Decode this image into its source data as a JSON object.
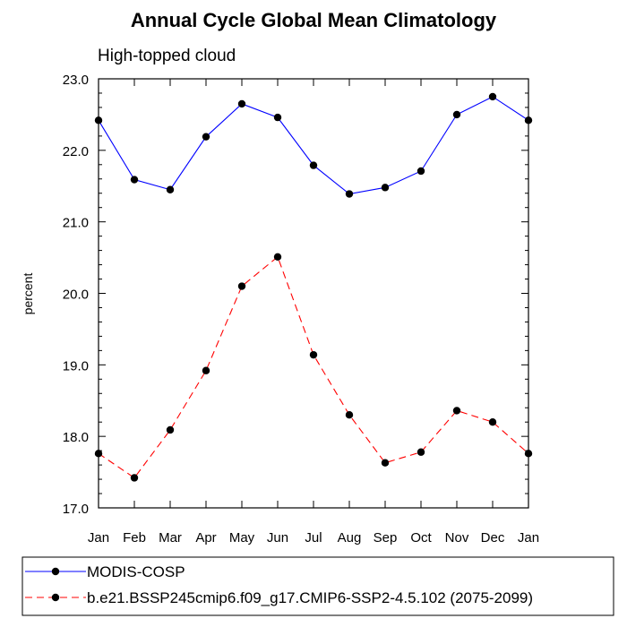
{
  "chart_data": {
    "type": "line",
    "title": "Annual Cycle Global Mean Climatology",
    "subtitle": "High-topped cloud",
    "xlabel": "",
    "ylabel": "percent",
    "categories": [
      "Jan",
      "Feb",
      "Mar",
      "Apr",
      "May",
      "Jun",
      "Jul",
      "Aug",
      "Sep",
      "Oct",
      "Nov",
      "Dec",
      "Jan"
    ],
    "ylim": [
      17.0,
      23.0
    ],
    "yticks": [
      "17.0",
      "18.0",
      "19.0",
      "20.0",
      "21.0",
      "22.0",
      "23.0"
    ],
    "grid": false,
    "legend_position": "bottom",
    "series": [
      {
        "name": "MODIS-COSP",
        "color": "#0000ff",
        "line_style": "solid",
        "marker": "filled-circle",
        "values": [
          22.42,
          21.59,
          21.45,
          22.19,
          22.65,
          22.46,
          21.79,
          21.39,
          21.48,
          21.71,
          22.5,
          22.75,
          22.42
        ]
      },
      {
        "name": "b.e21.BSSP245cmip6.f09_g17.CMIP6-SSP2-4.5.102 (2075-2099)",
        "color": "#ff0000",
        "line_style": "dashed",
        "marker": "filled-circle",
        "values": [
          17.76,
          17.42,
          18.09,
          18.92,
          20.1,
          20.51,
          19.14,
          18.3,
          17.63,
          17.78,
          18.36,
          18.2,
          17.76
        ]
      }
    ]
  }
}
